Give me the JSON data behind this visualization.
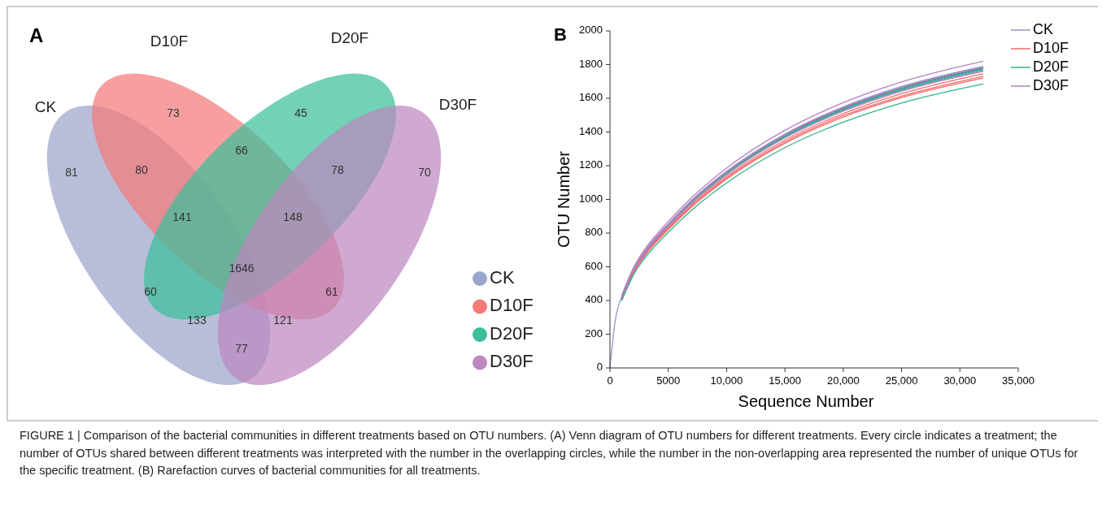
{
  "chart_data": [
    {
      "type": "other",
      "title": "A",
      "categories": [
        "CK",
        "D10F",
        "D20F",
        "D30F"
      ],
      "colors": [
        "#9ca5cc",
        "#f47a7a",
        "#3cbf9a",
        "#bc88bf"
      ],
      "annotations": [
        "81",
        "73",
        "45",
        "70",
        "80",
        "66",
        "78",
        "141",
        "148",
        "1646",
        "60",
        "61",
        "133",
        "121",
        "77"
      ]
    },
    {
      "type": "line",
      "title": "B",
      "xlabel": "Sequence Number",
      "ylabel": "OTU Number",
      "legend": "top right",
      "xlim": [
        0,
        35000
      ],
      "ylim": [
        0,
        2000
      ],
      "xticks": [
        0,
        5000,
        {
          "value": 10000,
          "label": "10,000"
        },
        {
          "value": 15000,
          "label": "15,000"
        },
        {
          "value": 20000,
          "label": "20,000"
        },
        {
          "value": 25000,
          "label": "25,000"
        },
        {
          "value": 30000,
          "label": "30,000"
        },
        {
          "value": 35000,
          "label": "35,000"
        }
      ],
      "yticks": [
        0,
        200,
        400,
        600,
        800,
        1000,
        1200,
        1400,
        1600,
        1800,
        2000
      ],
      "x": [
        1000,
        2000,
        3000,
        5000,
        7500,
        10000,
        15000,
        20000,
        25000,
        32000
      ],
      "series": [
        {
          "name": "CK",
          "color": "#8e96c8",
          "x": [
            0,
            500,
            1000,
            2000,
            3000,
            5000,
            7500,
            10000,
            15000,
            20000,
            25000,
            32000
          ],
          "values": [
            0,
            302,
            422,
            583,
            694,
            855,
            1026,
            1167,
            1388,
            1549,
            1670,
            1790
          ]
        },
        {
          "color": "#5f63a8",
          "x": [
            2000,
            3000,
            5000,
            7500,
            10000,
            15000,
            20000,
            25000,
            32000
          ],
          "values": [
            580,
            690,
            850,
            1020,
            1160,
            1380,
            1540,
            1660,
            1780
          ]
        },
        {
          "color": "#8e96c8",
          "values": [
            417,
            575,
            684,
            843,
            1012,
            1151,
            1369,
            1528,
            1647,
            1765
          ]
        },
        {
          "name": "D10F",
          "color": "#f26b6b",
          "values": [
            412,
            568,
            676,
            833,
            1000,
            1137,
            1352,
            1509,
            1627,
            1745
          ]
        },
        {
          "color": "#f26b6b",
          "values": [
            408,
            564,
            671,
            826,
            991,
            1128,
            1341,
            1497,
            1613,
            1730
          ]
        },
        {
          "color": "#f26b6b",
          "values": [
            406,
            560,
            667,
            821,
            985,
            1121,
            1333,
            1488,
            1604,
            1720
          ]
        },
        {
          "name": "D20F",
          "color": "#2fb38c",
          "values": [
            419,
            578,
            688,
            847,
            1017,
            1157,
            1376,
            1535,
            1655,
            1775
          ]
        },
        {
          "color": "#2fb38c",
          "x": [
            3000,
            5000,
            7500,
            10000,
            15000,
            20000,
            25000,
            32000
          ],
          "values": [
            686,
            845,
            1014,
            1153,
            1372,
            1531,
            1650,
            1770
          ]
        },
        {
          "color": "#2fb38c",
          "values": [
            398,
            549,
            653,
            805,
            966,
            1098,
            1307,
            1458,
            1572,
            1685
          ]
        },
        {
          "name": "D30F",
          "color": "#b77fc0",
          "values": [
            429,
            593,
            705,
            869,
            1042,
            1186,
            1410,
            1574,
            1697,
            1820
          ]
        },
        {
          "color": "#b77fc0",
          "values": [
            421,
            582,
            692,
            853,
            1023,
            1163,
            1384,
            1545,
            1665,
            1785
          ]
        },
        {
          "color": "#b77fc0",
          "values": [
            415,
            574,
            682,
            841,
            1009,
            1147,
            1365,
            1523,
            1642,
            1760
          ]
        }
      ],
      "annotations": [
        "FIGURE 1 | Comparison of the bacterial communities in different treatments based on OTU numbers. (A) Venn diagram of OTU numbers for different treatments. Every circle indicates a treatment; the number of OTUs shared between different treatments was interpreted with the number in the overlapping circles, while the number in the non-overlapping area represented the number of unique OTUs for the specific treatment. (B) Rarefaction curves of bacterial communities for all treatments."
      ]
    }
  ]
}
